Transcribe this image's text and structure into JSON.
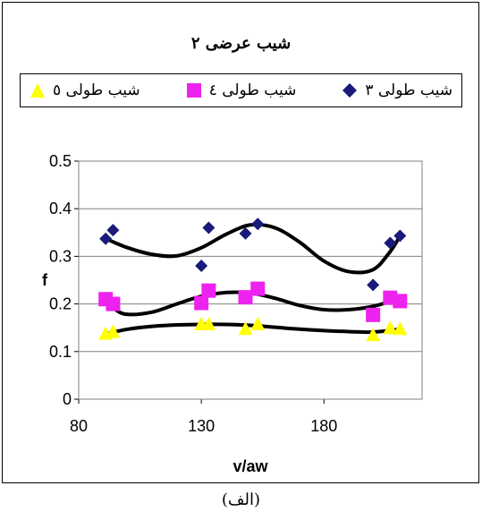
{
  "chart_data": {
    "type": "scatter",
    "title": "شیب عرضی ٢",
    "xlabel": "v/aw",
    "ylabel": "f",
    "xlim": [
      80,
      220
    ],
    "ylim": [
      0,
      0.5
    ],
    "x_ticks": [
      "80",
      "130",
      "180"
    ],
    "x_tick_values": [
      80,
      130,
      180
    ],
    "y_ticks": [
      "0",
      "0.1",
      "0.2",
      "0.3",
      "0.4",
      "0.5"
    ],
    "y_tick_values": [
      0,
      0.1,
      0.2,
      0.3,
      0.4,
      0.5
    ],
    "grid": "horizontal",
    "legend_position": "top",
    "series": [
      {
        "name": "شیب طولی ٣",
        "marker": "diamond",
        "color": "#1a1a7a",
        "x": [
          91,
          94,
          130,
          133,
          148,
          153,
          200,
          207,
          211
        ],
        "y": [
          0.337,
          0.355,
          0.28,
          0.36,
          0.348,
          0.368,
          0.24,
          0.328,
          0.343
        ],
        "trend": [
          [
            91,
            0.337
          ],
          [
            100,
            0.318
          ],
          [
            110,
            0.304
          ],
          [
            120,
            0.301
          ],
          [
            130,
            0.318
          ],
          [
            140,
            0.346
          ],
          [
            150,
            0.366
          ],
          [
            160,
            0.36
          ],
          [
            170,
            0.33
          ],
          [
            180,
            0.29
          ],
          [
            190,
            0.268
          ],
          [
            200,
            0.272
          ],
          [
            207,
            0.31
          ],
          [
            211,
            0.343
          ]
        ]
      },
      {
        "name": "شیب طولی ٤",
        "marker": "square",
        "color": "#ee22ee",
        "x": [
          91,
          94,
          130,
          133,
          148,
          153,
          200,
          207,
          211
        ],
        "y": [
          0.21,
          0.2,
          0.202,
          0.228,
          0.214,
          0.232,
          0.177,
          0.213,
          0.206
        ],
        "trend": [
          [
            91,
            0.208
          ],
          [
            95,
            0.188
          ],
          [
            100,
            0.178
          ],
          [
            110,
            0.183
          ],
          [
            120,
            0.2
          ],
          [
            130,
            0.216
          ],
          [
            140,
            0.224
          ],
          [
            150,
            0.223
          ],
          [
            160,
            0.212
          ],
          [
            170,
            0.197
          ],
          [
            180,
            0.188
          ],
          [
            190,
            0.188
          ],
          [
            200,
            0.195
          ],
          [
            211,
            0.212
          ]
        ]
      },
      {
        "name": "شیب طولی ٥",
        "marker": "triangle",
        "color": "#ffff00",
        "x": [
          91,
          94,
          130,
          133,
          148,
          153,
          200,
          207,
          211
        ],
        "y": [
          0.138,
          0.142,
          0.158,
          0.158,
          0.148,
          0.158,
          0.135,
          0.15,
          0.148
        ],
        "trend": [
          [
            91,
            0.137
          ],
          [
            100,
            0.147
          ],
          [
            110,
            0.153
          ],
          [
            120,
            0.156
          ],
          [
            130,
            0.157
          ],
          [
            140,
            0.157
          ],
          [
            150,
            0.155
          ],
          [
            160,
            0.151
          ],
          [
            170,
            0.147
          ],
          [
            180,
            0.144
          ],
          [
            190,
            0.142
          ],
          [
            200,
            0.141
          ],
          [
            211,
            0.147
          ]
        ]
      }
    ]
  },
  "caption": "(الف)"
}
